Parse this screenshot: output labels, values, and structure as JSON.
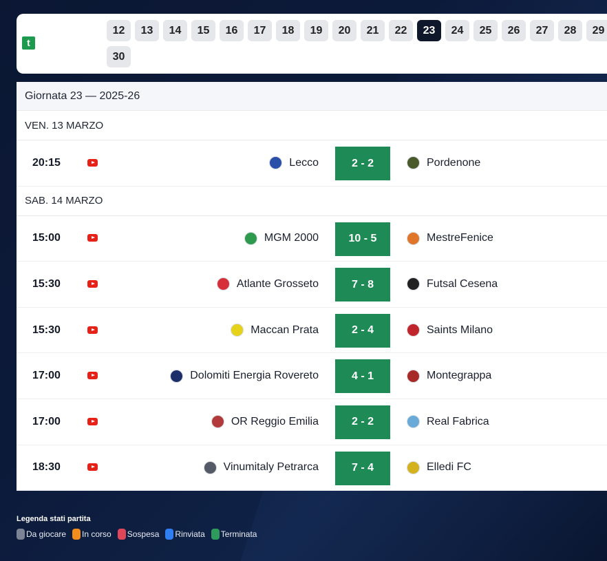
{
  "colors": {
    "score_bg": "#1e8a55",
    "active_round_bg": "#0f172a",
    "round_bg": "#e5e7eb",
    "youtube": "#e62117"
  },
  "logo": {
    "glyph": "t"
  },
  "rounds": [
    "12",
    "13",
    "14",
    "15",
    "16",
    "17",
    "18",
    "19",
    "20",
    "21",
    "22",
    "23",
    "24",
    "25",
    "26",
    "27",
    "28",
    "29",
    "30"
  ],
  "active_round": "23",
  "title": "Giornata 23 — 2025-26",
  "days": [
    {
      "label": "VEN. 13 MARZO",
      "matches": [
        {
          "time": "20:15",
          "home": "Lecco",
          "score": "2 - 2",
          "away": "Pordenone",
          "home_crest": "#2a4fa8",
          "away_crest": "#4a5a2a"
        }
      ]
    },
    {
      "label": "SAB. 14 MARZO",
      "matches": [
        {
          "time": "15:00",
          "home": "MGM 2000",
          "score": "10 - 5",
          "away": "MestreFenice",
          "home_crest": "#2e9a4e",
          "away_crest": "#e0762a"
        },
        {
          "time": "15:30",
          "home": "Atlante Grosseto",
          "score": "7 - 8",
          "away": "Futsal Cesena",
          "home_crest": "#d62f3a",
          "away_crest": "#222222"
        },
        {
          "time": "15:30",
          "home": "Maccan Prata",
          "score": "2 - 4",
          "away": "Saints Milano",
          "home_crest": "#e6d21a",
          "away_crest": "#c0252b"
        },
        {
          "time": "17:00",
          "home": "Dolomiti Energia Rovereto",
          "score": "4 - 1",
          "away": "Montegrappa",
          "home_crest": "#1b2e6a",
          "away_crest": "#a82a26"
        },
        {
          "time": "17:00",
          "home": "OR Reggio Emilia",
          "score": "2 - 2",
          "away": "Real Fabrica",
          "home_crest": "#b33a3a",
          "away_crest": "#6aaad8"
        },
        {
          "time": "18:30",
          "home": "Vinumitaly Petrarca",
          "score": "7 - 4",
          "away": "Elledi FC",
          "home_crest": "#555b66",
          "away_crest": "#d4b21e"
        }
      ]
    }
  ],
  "legend": {
    "title": "Legenda stati partita",
    "items": [
      {
        "label": "Da giocare",
        "color": "#7b8494"
      },
      {
        "label": "In corso",
        "color": "#f28c1c"
      },
      {
        "label": "Sospesa",
        "color": "#e0465a"
      },
      {
        "label": "Rinviata",
        "color": "#2f7ef2"
      },
      {
        "label": "Terminata",
        "color": "#2e9a5c"
      }
    ]
  }
}
